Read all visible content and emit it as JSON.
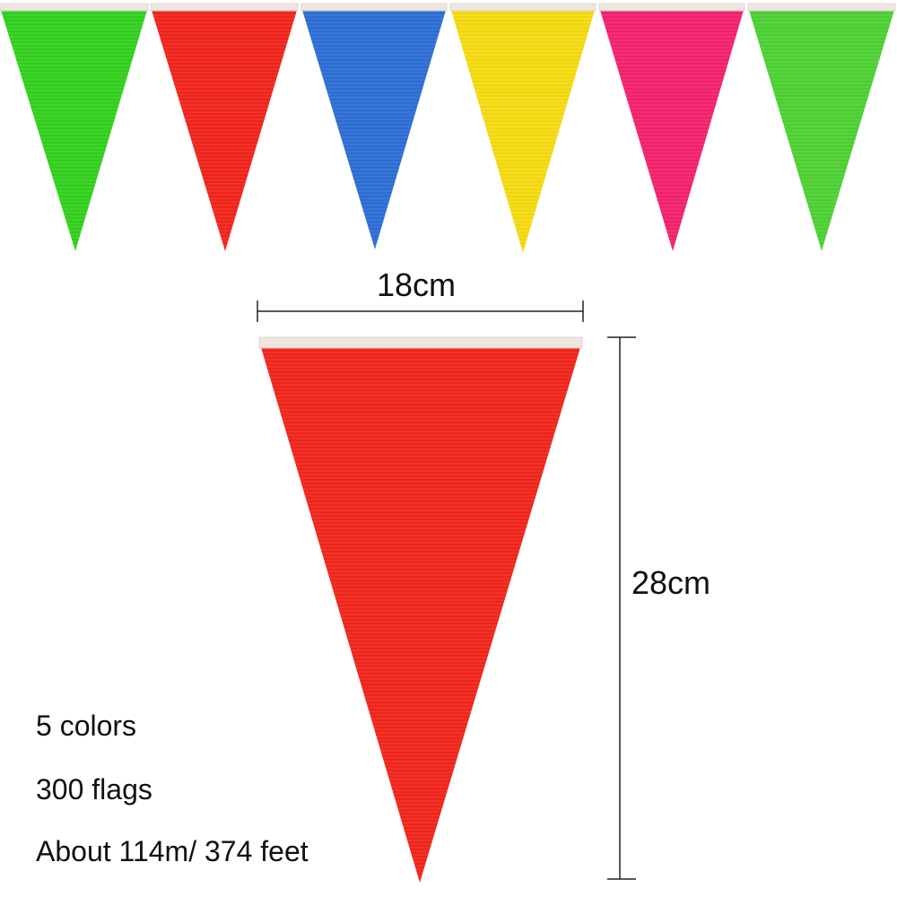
{
  "product": {
    "top_flag_colors": [
      "#33d11f",
      "#f2261c",
      "#2e6fd6",
      "#f5dc12",
      "#f4236e",
      "#4fd236"
    ],
    "detail_flag_color": "#f2271c",
    "hem_color": "#efe6e2"
  },
  "dimensions": {
    "width_label": "18cm",
    "height_label": "28cm"
  },
  "specs": {
    "colors": "5 colors",
    "flags": "300 flags",
    "length": "About 114m/ 374 feet"
  }
}
